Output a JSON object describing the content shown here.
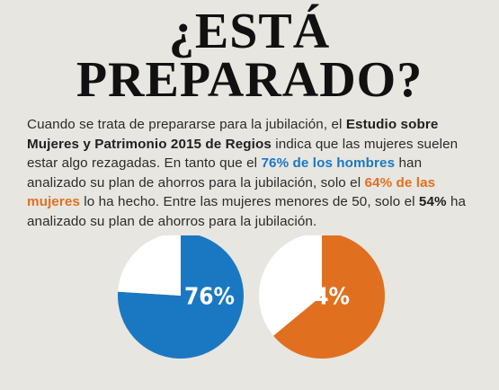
{
  "title": {
    "line1": "¿ESTÁ",
    "line2": "PREPARADO?"
  },
  "paragraph": {
    "p1": "Cuando se trata de prepararse para la jubilación, el ",
    "study": "Estudio sobre Mujeres y Patrimonio 2015 de Regios",
    "p2": " indica que las mujeres suelen estar algo rezagadas. En tanto que el ",
    "men_stat": "76% de los hombres",
    "p3": " han analizado su plan de ahorros para la jubilación, solo el ",
    "women_stat": "64% de las mujeres",
    "p4": " lo ha hecho. Entre las mujeres menores de 50, solo el ",
    "under50_stat": "54%",
    "p5": " ha analizado su plan de ahorros para la jubilación."
  },
  "colors": {
    "blue": "#1a78c2",
    "orange": "#e07020",
    "pie_remainder": "#ffffff",
    "background": "#e8e6e1"
  },
  "chart_data": [
    {
      "type": "pie",
      "title": "",
      "slices": [
        {
          "label": "76%",
          "value": 76,
          "color": "#1a78c2"
        },
        {
          "label": "",
          "value": 24,
          "color": "#ffffff"
        }
      ]
    },
    {
      "type": "pie",
      "title": "",
      "slices": [
        {
          "label": "64%",
          "value": 64,
          "color": "#e07020"
        },
        {
          "label": "",
          "value": 36,
          "color": "#ffffff"
        }
      ]
    }
  ]
}
